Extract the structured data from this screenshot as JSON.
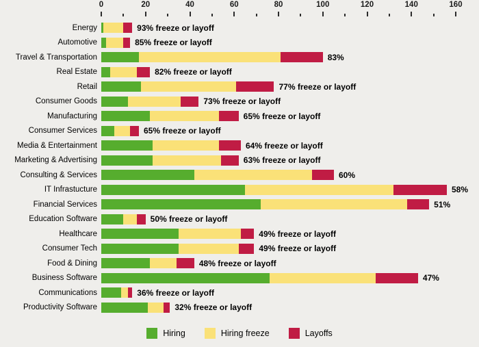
{
  "chart_data": {
    "type": "bar",
    "orientation": "horizontal",
    "stacked": true,
    "title": "",
    "x_axis": {
      "position": "top",
      "min": 0,
      "max": 160,
      "major_ticks": [
        0,
        20,
        40,
        60,
        80,
        100,
        120,
        140,
        160
      ],
      "minor_tick_interval": 10
    },
    "colors": {
      "hiring": "#56ad2e",
      "freeze": "#fae178",
      "layoffs": "#c01c44",
      "background": "#efeeeb"
    },
    "series_keys": [
      "hiring",
      "freeze",
      "layoffs"
    ],
    "legend": [
      {
        "label": "Hiring",
        "key": "hiring"
      },
      {
        "label": "Hiring freeze",
        "key": "freeze"
      },
      {
        "label": "Layoffs",
        "key": "layoffs"
      }
    ],
    "rows": [
      {
        "category": "Energy",
        "hiring": 1,
        "freeze": 9,
        "layoffs": 4,
        "label": "93% freeze or layoff"
      },
      {
        "category": "Automotive",
        "hiring": 2,
        "freeze": 8,
        "layoffs": 3,
        "label": "85% freeze or layoff"
      },
      {
        "category": "Travel & Transportation",
        "hiring": 17,
        "freeze": 64,
        "layoffs": 19,
        "label": "83%"
      },
      {
        "category": "Real Estate",
        "hiring": 4,
        "freeze": 12,
        "layoffs": 6,
        "label": "82% freeze or layoff"
      },
      {
        "category": "Retail",
        "hiring": 18,
        "freeze": 43,
        "layoffs": 17,
        "label": "77% freeze or layoff"
      },
      {
        "category": "Consumer Goods",
        "hiring": 12,
        "freeze": 24,
        "layoffs": 8,
        "label": "73% freeze or layoff"
      },
      {
        "category": "Manufacturing",
        "hiring": 22,
        "freeze": 31,
        "layoffs": 9,
        "label": "65% freeze or layoff"
      },
      {
        "category": "Consumer Services",
        "hiring": 6,
        "freeze": 7,
        "layoffs": 4,
        "label": "65% freeze or layoff"
      },
      {
        "category": "Media & Entertainment",
        "hiring": 23,
        "freeze": 30,
        "layoffs": 10,
        "label": "64% freeze or layoff"
      },
      {
        "category": "Marketing & Advertising",
        "hiring": 23,
        "freeze": 31,
        "layoffs": 8,
        "label": "63% freeze or layoff"
      },
      {
        "category": "Consulting & Services",
        "hiring": 42,
        "freeze": 53,
        "layoffs": 10,
        "label": "60%"
      },
      {
        "category": "IT Infrastucture",
        "hiring": 65,
        "freeze": 67,
        "layoffs": 24,
        "label": "58%"
      },
      {
        "category": "Financial Services",
        "hiring": 72,
        "freeze": 66,
        "layoffs": 10,
        "label": "51%"
      },
      {
        "category": "Education Software",
        "hiring": 10,
        "freeze": 6,
        "layoffs": 4,
        "label": "50% freeze or layoff"
      },
      {
        "category": "Healthcare",
        "hiring": 35,
        "freeze": 28,
        "layoffs": 6,
        "label": "49% freeze or layoff"
      },
      {
        "category": "Consumer Tech",
        "hiring": 35,
        "freeze": 27,
        "layoffs": 7,
        "label": "49% freeze or layoff"
      },
      {
        "category": "Food & Dining",
        "hiring": 22,
        "freeze": 12,
        "layoffs": 8,
        "label": "48% freeze or layoff"
      },
      {
        "category": "Business Software",
        "hiring": 76,
        "freeze": 48,
        "layoffs": 19,
        "label": "47%"
      },
      {
        "category": "Communications",
        "hiring": 9,
        "freeze": 3,
        "layoffs": 2,
        "label": "36% freeze or layoff"
      },
      {
        "category": "Productivity Software",
        "hiring": 21,
        "freeze": 7,
        "layoffs": 3,
        "label": "32% freeze or layoff"
      }
    ]
  }
}
